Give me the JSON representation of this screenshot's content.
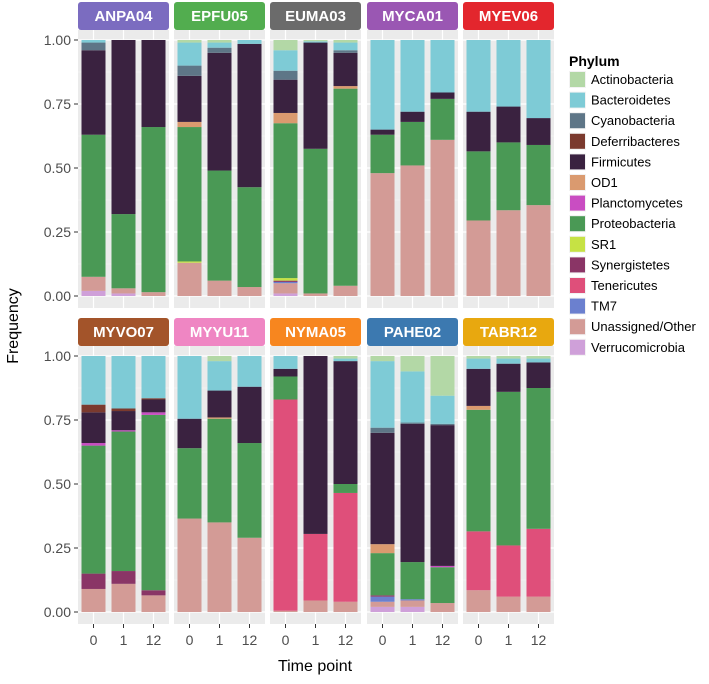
{
  "chart_data": {
    "type": "bar",
    "stacked": true,
    "facets": true,
    "xlabel": "Time point",
    "ylabel": "Frequency",
    "ylim": [
      0,
      1
    ],
    "y_ticks": [
      "0.00",
      "0.25",
      "0.50",
      "0.75",
      "1.00"
    ],
    "y_tick_values": [
      0,
      0.25,
      0.5,
      0.75,
      1.0
    ],
    "categories": [
      "0",
      "1",
      "12"
    ],
    "legend": {
      "title": "Phylum",
      "position": "right",
      "entries": [
        {
          "name": "Actinobacteria",
          "color": "#b3d8a6"
        },
        {
          "name": "Bacteroidetes",
          "color": "#7ecbd6"
        },
        {
          "name": "Cyanobacteria",
          "color": "#5e7687"
        },
        {
          "name": "Deferribacteres",
          "color": "#7b3a2e"
        },
        {
          "name": "Firmicutes",
          "color": "#3a2240"
        },
        {
          "name": "OD1",
          "color": "#da9a6f"
        },
        {
          "name": "Planctomycetes",
          "color": "#c94dc2"
        },
        {
          "name": "Proteobacteria",
          "color": "#4a9955"
        },
        {
          "name": "SR1",
          "color": "#c6e244"
        },
        {
          "name": "Synergistetes",
          "color": "#8a3566"
        },
        {
          "name": "Tenericutes",
          "color": "#df4f7a"
        },
        {
          "name": "TM7",
          "color": "#6b80cf"
        },
        {
          "name": "Unassigned/Other",
          "color": "#d39b96"
        },
        {
          "name": "Verrucomicrobia",
          "color": "#cfa0d9"
        }
      ]
    },
    "stack_order_bottom_to_top": [
      "Verrucomicrobia",
      "Unassigned/Other",
      "TM7",
      "Tenericutes",
      "Synergistetes",
      "SR1",
      "Proteobacteria",
      "Planctomycetes",
      "OD1",
      "Firmicutes",
      "Deferribacteres",
      "Cyanobacteria",
      "Bacteroidetes",
      "Actinobacteria"
    ],
    "panels": [
      {
        "name": "ANPA04",
        "strip_color": "#7b6cc0",
        "bars": [
          {
            "x": "0",
            "values": {
              "Verrucomicrobia": 0.02,
              "Unassigned/Other": 0.055,
              "Proteobacteria": 0.555,
              "Firmicutes": 0.33,
              "Cyanobacteria": 0.03,
              "Bacteroidetes": 0.01
            }
          },
          {
            "x": "1",
            "values": {
              "Verrucomicrobia": 0.01,
              "Unassigned/Other": 0.02,
              "Proteobacteria": 0.29,
              "Firmicutes": 0.68
            }
          },
          {
            "x": "12",
            "values": {
              "Unassigned/Other": 0.015,
              "Proteobacteria": 0.645,
              "Firmicutes": 0.34
            }
          }
        ]
      },
      {
        "name": "EPFU05",
        "strip_color": "#52ad4f",
        "bars": [
          {
            "x": "0",
            "values": {
              "Unassigned/Other": 0.13,
              "SR1": 0.005,
              "Proteobacteria": 0.525,
              "OD1": 0.02,
              "Firmicutes": 0.18,
              "Cyanobacteria": 0.04,
              "Bacteroidetes": 0.09,
              "Actinobacteria": 0.01
            }
          },
          {
            "x": "1",
            "values": {
              "Unassigned/Other": 0.06,
              "Proteobacteria": 0.43,
              "Firmicutes": 0.46,
              "Cyanobacteria": 0.02,
              "Bacteroidetes": 0.02,
              "Actinobacteria": 0.01
            }
          },
          {
            "x": "12",
            "values": {
              "Unassigned/Other": 0.035,
              "Proteobacteria": 0.39,
              "Firmicutes": 0.56,
              "Bacteroidetes": 0.015
            }
          }
        ]
      },
      {
        "name": "EUMA03",
        "strip_color": "#6b6b6b",
        "bars": [
          {
            "x": "0",
            "values": {
              "Verrucomicrobia": 0.01,
              "Unassigned/Other": 0.04,
              "TM7": 0.005,
              "Synergistetes": 0.005,
              "SR1": 0.01,
              "Proteobacteria": 0.605,
              "OD1": 0.04,
              "Firmicutes": 0.13,
              "Cyanobacteria": 0.035,
              "Bacteroidetes": 0.08,
              "Actinobacteria": 0.04
            }
          },
          {
            "x": "1",
            "values": {
              "Unassigned/Other": 0.01,
              "Proteobacteria": 0.565,
              "Firmicutes": 0.415,
              "Bacteroidetes": 0.005,
              "Actinobacteria": 0.005
            }
          },
          {
            "x": "12",
            "values": {
              "Unassigned/Other": 0.04,
              "Proteobacteria": 0.77,
              "OD1": 0.01,
              "Firmicutes": 0.13,
              "Cyanobacteria": 0.01,
              "Bacteroidetes": 0.03,
              "Actinobacteria": 0.01
            }
          }
        ]
      },
      {
        "name": "MYCA01",
        "strip_color": "#9a57b3",
        "bars": [
          {
            "x": "0",
            "values": {
              "Unassigned/Other": 0.48,
              "Proteobacteria": 0.15,
              "Firmicutes": 0.02,
              "Bacteroidetes": 0.35
            }
          },
          {
            "x": "1",
            "values": {
              "Unassigned/Other": 0.51,
              "Proteobacteria": 0.17,
              "Firmicutes": 0.04,
              "Bacteroidetes": 0.28
            }
          },
          {
            "x": "12",
            "values": {
              "Unassigned/Other": 0.61,
              "Proteobacteria": 0.16,
              "Firmicutes": 0.025,
              "Bacteroidetes": 0.205
            }
          }
        ]
      },
      {
        "name": "MYEV06",
        "strip_color": "#e3262d",
        "bars": [
          {
            "x": "0",
            "values": {
              "Unassigned/Other": 0.295,
              "Proteobacteria": 0.27,
              "Firmicutes": 0.155,
              "Bacteroidetes": 0.28
            }
          },
          {
            "x": "1",
            "values": {
              "Unassigned/Other": 0.335,
              "Proteobacteria": 0.265,
              "Firmicutes": 0.14,
              "Bacteroidetes": 0.26
            }
          },
          {
            "x": "12",
            "values": {
              "Unassigned/Other": 0.355,
              "Proteobacteria": 0.235,
              "Firmicutes": 0.105,
              "Bacteroidetes": 0.305
            }
          }
        ]
      },
      {
        "name": "MYVO07",
        "strip_color": "#a3542a",
        "bars": [
          {
            "x": "0",
            "values": {
              "Unassigned/Other": 0.09,
              "Synergistetes": 0.06,
              "Proteobacteria": 0.5,
              "Planctomycetes": 0.01,
              "Firmicutes": 0.12,
              "Deferribacteres": 0.03,
              "Bacteroidetes": 0.19
            }
          },
          {
            "x": "1",
            "values": {
              "Unassigned/Other": 0.11,
              "Synergistetes": 0.05,
              "Proteobacteria": 0.545,
              "Planctomycetes": 0.005,
              "Firmicutes": 0.075,
              "Deferribacteres": 0.01,
              "Bacteroidetes": 0.205
            }
          },
          {
            "x": "12",
            "values": {
              "Unassigned/Other": 0.065,
              "Synergistetes": 0.02,
              "Proteobacteria": 0.685,
              "Planctomycetes": 0.01,
              "Firmicutes": 0.05,
              "Deferribacteres": 0.005,
              "Bacteroidetes": 0.165
            }
          }
        ]
      },
      {
        "name": "MYYU11",
        "strip_color": "#ef86c3",
        "bars": [
          {
            "x": "0",
            "values": {
              "Unassigned/Other": 0.365,
              "Proteobacteria": 0.275,
              "Firmicutes": 0.115,
              "Bacteroidetes": 0.245
            }
          },
          {
            "x": "1",
            "values": {
              "Unassigned/Other": 0.35,
              "Proteobacteria": 0.405,
              "OD1": 0.005,
              "Firmicutes": 0.105,
              "Bacteroidetes": 0.115,
              "Actinobacteria": 0.02
            }
          },
          {
            "x": "12",
            "values": {
              "Unassigned/Other": 0.29,
              "Proteobacteria": 0.37,
              "Firmicutes": 0.22,
              "Bacteroidetes": 0.12
            }
          }
        ]
      },
      {
        "name": "NYMA05",
        "strip_color": "#f7861f",
        "bars": [
          {
            "x": "0",
            "values": {
              "Unassigned/Other": 0.005,
              "Tenericutes": 0.825,
              "Proteobacteria": 0.09,
              "Firmicutes": 0.03,
              "Bacteroidetes": 0.05
            }
          },
          {
            "x": "1",
            "values": {
              "Unassigned/Other": 0.045,
              "Tenericutes": 0.26,
              "Firmicutes": 0.695
            }
          },
          {
            "x": "12",
            "values": {
              "Unassigned/Other": 0.04,
              "Tenericutes": 0.425,
              "Proteobacteria": 0.035,
              "Firmicutes": 0.48,
              "Bacteroidetes": 0.01,
              "Actinobacteria": 0.01
            }
          }
        ]
      },
      {
        "name": "PAHE02",
        "strip_color": "#3c79b0",
        "bars": [
          {
            "x": "0",
            "values": {
              "Verrucomicrobia": 0.02,
              "Unassigned/Other": 0.02,
              "TM7": 0.02,
              "Synergistetes": 0.005,
              "Proteobacteria": 0.165,
              "OD1": 0.035,
              "Firmicutes": 0.435,
              "Cyanobacteria": 0.02,
              "Bacteroidetes": 0.26,
              "Actinobacteria": 0.02
            }
          },
          {
            "x": "1",
            "values": {
              "Verrucomicrobia": 0.02,
              "Unassigned/Other": 0.025,
              "TM7": 0.005,
              "Proteobacteria": 0.145,
              "Firmicutes": 0.54,
              "Cyanobacteria": 0.005,
              "Bacteroidetes": 0.2,
              "Actinobacteria": 0.06
            }
          },
          {
            "x": "12",
            "values": {
              "Unassigned/Other": 0.035,
              "Proteobacteria": 0.14,
              "Planctomycetes": 0.005,
              "Firmicutes": 0.55,
              "Cyanobacteria": 0.005,
              "Bacteroidetes": 0.11,
              "Actinobacteria": 0.155
            }
          }
        ]
      },
      {
        "name": "TABR12",
        "strip_color": "#e8a80f",
        "bars": [
          {
            "x": "0",
            "values": {
              "Unassigned/Other": 0.085,
              "Tenericutes": 0.23,
              "Proteobacteria": 0.475,
              "OD1": 0.015,
              "Firmicutes": 0.145,
              "Bacteroidetes": 0.04,
              "Actinobacteria": 0.01
            }
          },
          {
            "x": "1",
            "values": {
              "Unassigned/Other": 0.06,
              "Tenericutes": 0.2,
              "Proteobacteria": 0.6,
              "Firmicutes": 0.11,
              "Bacteroidetes": 0.02,
              "Actinobacteria": 0.01
            }
          },
          {
            "x": "12",
            "values": {
              "Unassigned/Other": 0.06,
              "Tenericutes": 0.265,
              "Proteobacteria": 0.55,
              "Firmicutes": 0.1,
              "Bacteroidetes": 0.015,
              "Actinobacteria": 0.01
            }
          }
        ]
      }
    ]
  }
}
